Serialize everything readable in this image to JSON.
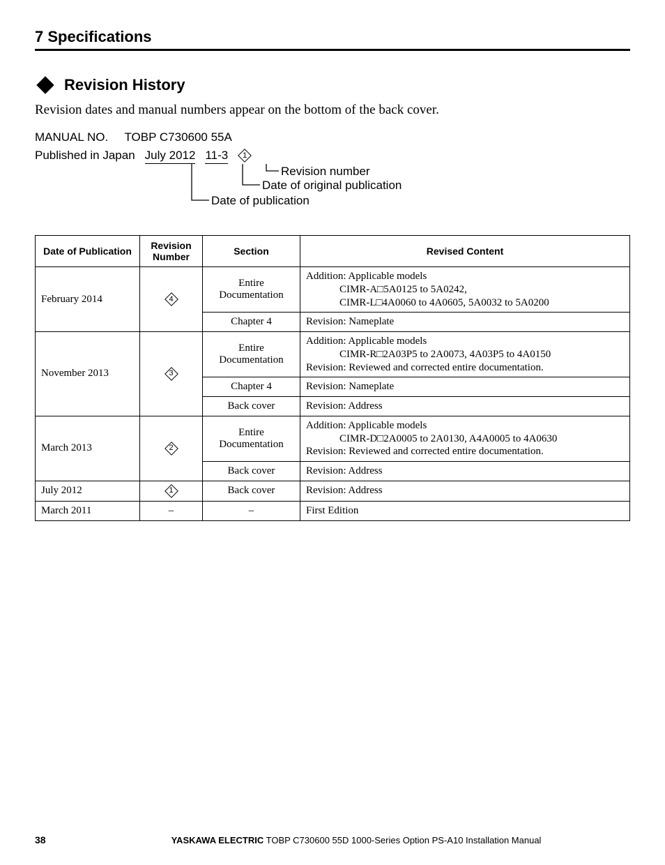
{
  "header": {
    "section": "7  Specifications"
  },
  "subsection": {
    "title": "Revision History"
  },
  "intro": "Revision dates and manual numbers appear on the bottom of the back cover.",
  "manual": {
    "label": "MANUAL NO.",
    "number": "TOBP C730600 55A",
    "published_label": "Published in Japan",
    "date": "July 2012",
    "code": "11-3",
    "rev_symbol": "1",
    "callout_revision": "Revision number",
    "callout_orig": "Date of original publication",
    "callout_pub": "Date of publication"
  },
  "table": {
    "headers": {
      "date": "Date of Publication",
      "rev": "Revision Number",
      "section": "Section",
      "content": "Revised Content"
    },
    "rows": [
      {
        "date": "February 2014",
        "rev": "4",
        "sections": [
          {
            "section": "Entire Documentation",
            "content_lines": [
              "Addition: Applicable models",
              "CIMR-A□5A0125 to 5A0242,",
              "CIMR-L□4A0060 to 4A0605, 5A0032 to 5A0200"
            ],
            "indent_from": 1
          },
          {
            "section": "Chapter 4",
            "content_lines": [
              "Revision: Nameplate"
            ]
          }
        ]
      },
      {
        "date": "November 2013",
        "rev": "3",
        "sections": [
          {
            "section": "Entire Documentation",
            "content_lines": [
              "Addition: Applicable models",
              "CIMR-R□2A03P5 to 2A0073, 4A03P5 to 4A0150",
              "Revision: Reviewed and corrected entire documentation."
            ],
            "indent_map": [
              false,
              true,
              false
            ]
          },
          {
            "section": "Chapter 4",
            "content_lines": [
              "Revision: Nameplate"
            ]
          },
          {
            "section": "Back cover",
            "content_lines": [
              "Revision: Address"
            ]
          }
        ]
      },
      {
        "date": "March 2013",
        "rev": "2",
        "sections": [
          {
            "section": "Entire Documentation",
            "content_lines": [
              "Addition: Applicable models",
              "CIMR-D□2A0005 to 2A0130, A4A0005 to 4A0630",
              "Revision: Reviewed and corrected entire documentation."
            ],
            "indent_map": [
              false,
              true,
              false
            ]
          },
          {
            "section": "Back cover",
            "content_lines": [
              "Revision: Address"
            ]
          }
        ]
      },
      {
        "date": "July 2012",
        "rev": "1",
        "sections": [
          {
            "section": "Back cover",
            "content_lines": [
              "Revision: Address"
            ]
          }
        ]
      },
      {
        "date": "March 2011",
        "rev": "–",
        "plain_rev": true,
        "sections": [
          {
            "section": "–",
            "content_lines": [
              "First Edition"
            ]
          }
        ]
      }
    ]
  },
  "footer": {
    "page": "38",
    "brand": "YASKAWA ELECTRIC",
    "tail": " TOBP C730600 55D 1000-Series Option PS-A10 Installation Manual"
  }
}
